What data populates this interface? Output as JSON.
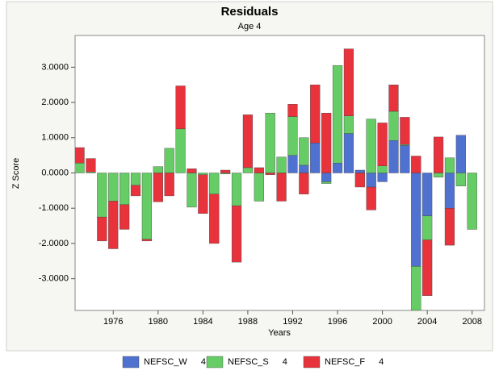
{
  "chart_data": {
    "type": "bar",
    "stacked": true,
    "title": "Residuals",
    "subtitle": "Age 4",
    "xlabel": "Years",
    "ylabel": "Z Score",
    "categories": [
      1973,
      1974,
      1975,
      1976,
      1977,
      1978,
      1979,
      1980,
      1981,
      1982,
      1983,
      1984,
      1985,
      1986,
      1987,
      1988,
      1989,
      1990,
      1991,
      1992,
      1993,
      1994,
      1995,
      1996,
      1997,
      1998,
      1999,
      2000,
      2001,
      2002,
      2003,
      2004,
      2005,
      2006,
      2007,
      2008
    ],
    "series": [
      {
        "name": "NEFSC_W 4",
        "color": "#4f72d0",
        "values": [
          0,
          0,
          0,
          0,
          0,
          0,
          0,
          0,
          0,
          0,
          0,
          0,
          0,
          0,
          0,
          0,
          0,
          0,
          0,
          0.5,
          0.22,
          0.85,
          -0.25,
          0.28,
          1.12,
          0.08,
          -0.4,
          -0.25,
          0.92,
          0.78,
          -2.65,
          -1.22,
          0,
          -1.0,
          1.07,
          0
        ]
      },
      {
        "name": "NEFSC_S 4",
        "color": "#66cc66",
        "values": [
          0.28,
          0.03,
          -1.25,
          -0.8,
          -0.9,
          -0.35,
          -1.88,
          0.18,
          0.7,
          1.25,
          -0.97,
          -0.05,
          -0.6,
          -0.03,
          -0.93,
          0.15,
          -0.8,
          1.7,
          0.45,
          1.1,
          0.78,
          0,
          -0.05,
          2.77,
          0.5,
          0,
          1.53,
          0.2,
          0.83,
          0.03,
          -1.25,
          -0.68,
          -0.12,
          0.43,
          -0.37,
          -1.6
        ]
      },
      {
        "name": "NEFSC_F 4",
        "color": "#e8323c",
        "values": [
          0.44,
          0.38,
          -0.68,
          -1.35,
          -0.7,
          -0.3,
          -0.05,
          -0.82,
          -0.65,
          1.22,
          0.12,
          -1.1,
          -1.4,
          0.08,
          -1.6,
          1.5,
          0.15,
          -0.05,
          -0.8,
          0.35,
          -0.6,
          1.65,
          1.7,
          0,
          1.9,
          -0.4,
          -0.65,
          1.22,
          0.75,
          0.77,
          0.48,
          -1.58,
          1.02,
          -1.05,
          0,
          0
        ]
      }
    ],
    "xlim": [
      1972.6,
      2009.1
    ],
    "xticks": [
      1976,
      1980,
      1984,
      1988,
      1992,
      1996,
      2000,
      2004,
      2008
    ],
    "ylim": [
      -3.9,
      3.9
    ],
    "yticks": [
      {
        "value": -3,
        "label": "-3.0000"
      },
      {
        "value": -2,
        "label": "-2.0000"
      },
      {
        "value": -1,
        "label": "-1.0000"
      },
      {
        "value": 0,
        "label": "0.0000"
      },
      {
        "value": 1,
        "label": "1.0000"
      },
      {
        "value": 2,
        "label": "2.0000"
      },
      {
        "value": 3,
        "label": "3.0000"
      }
    ]
  }
}
